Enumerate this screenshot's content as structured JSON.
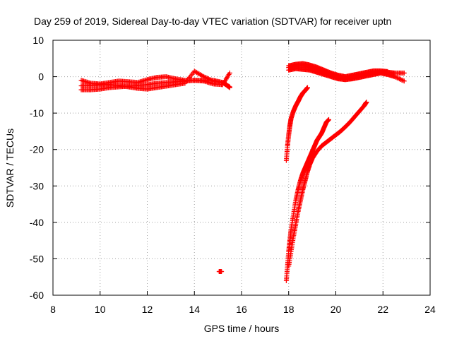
{
  "chart_data": {
    "type": "scatter",
    "title": "Day 259 of 2019, Sidereal Day-to-day VTEC variation (SDTVAR) for receiver uptn",
    "xlabel": "GPS time / hours",
    "ylabel": "SDTVAR / TECUs",
    "xlim": [
      8,
      24
    ],
    "ylim": [
      -60,
      10
    ],
    "xticks": [
      "8",
      "10",
      "12",
      "14",
      "16",
      "18",
      "20",
      "22",
      "24"
    ],
    "yticks": [
      "10",
      "0",
      "-10",
      "-20",
      "-30",
      "-40",
      "-50",
      "-60"
    ],
    "grid": true,
    "legend": "none",
    "marker_color": "#ff0000",
    "series": [
      {
        "x": [
          9.2,
          9.6,
          10.0,
          10.4,
          10.8,
          11.2,
          11.6,
          12.0,
          12.4,
          12.8,
          13.2,
          13.6,
          14.0,
          14.4,
          14.8,
          15.2,
          15.5
        ],
        "y": [
          -1.0,
          -1.8,
          -2.0,
          -1.6,
          -1.2,
          -1.4,
          -1.6,
          -0.8,
          -0.2,
          0.0,
          -0.6,
          -1.0,
          -1.0,
          -1.2,
          -2.0,
          -2.2,
          1.0
        ]
      },
      {
        "x": [
          9.2,
          9.6,
          10.0,
          10.4,
          10.8,
          11.2,
          11.6,
          12.0,
          12.4,
          12.8,
          13.2,
          13.6,
          14.0,
          14.4,
          14.8,
          15.2,
          15.5
        ],
        "y": [
          -2.5,
          -2.4,
          -2.2,
          -2.2,
          -2.4,
          -2.8,
          -3.2,
          -3.4,
          -3.0,
          -2.6,
          -2.2,
          -1.8,
          1.5,
          0.0,
          -1.2,
          -1.6,
          -2.8
        ]
      },
      {
        "x": [
          9.2,
          9.6,
          10.0,
          10.4,
          10.8,
          11.2,
          11.6,
          12.0,
          12.4,
          12.8,
          13.2,
          13.6,
          14.0,
          14.4,
          14.8,
          15.2,
          15.5
        ],
        "y": [
          -3.6,
          -3.6,
          -3.4,
          -3.0,
          -2.8,
          -2.6,
          -2.4,
          -2.2,
          -1.8,
          -1.6,
          -1.4,
          -1.2,
          -1.0,
          -1.0,
          -1.0,
          -1.6,
          -3.0
        ]
      },
      {
        "x": [
          15.05,
          15.15
        ],
        "y": [
          -53.5,
          -53.5
        ]
      },
      {
        "x": [
          17.9,
          17.95,
          18.0,
          18.05,
          18.1,
          18.2,
          18.3,
          18.4,
          18.5,
          18.6,
          18.7,
          18.8
        ],
        "y": [
          -23.0,
          -19.0,
          -16.0,
          -13.5,
          -11.5,
          -9.5,
          -8.0,
          -6.8,
          -5.5,
          -4.5,
          -3.8,
          -3.0
        ]
      },
      {
        "x": [
          17.9,
          17.95,
          18.0,
          18.05,
          18.1,
          18.2,
          18.3,
          18.4,
          18.5,
          18.6,
          18.7,
          18.8,
          18.9,
          19.0,
          19.1,
          19.2,
          19.3,
          19.4,
          19.5,
          19.6,
          19.7
        ],
        "y": [
          -56.0,
          -52.0,
          -48.0,
          -45.0,
          -42.0,
          -38.0,
          -34.0,
          -31.0,
          -28.5,
          -26.5,
          -25.0,
          -23.5,
          -22.0,
          -20.5,
          -19.0,
          -17.5,
          -16.5,
          -15.5,
          -14.0,
          -12.5,
          -11.8
        ]
      },
      {
        "x": [
          18.0,
          18.1,
          18.2,
          18.3,
          18.4,
          18.5,
          18.6,
          18.7,
          18.8,
          18.9,
          19.0,
          19.2,
          19.4,
          19.6,
          19.8,
          20.0,
          20.2,
          20.4,
          20.6,
          20.8,
          21.0,
          21.2,
          21.3
        ],
        "y": [
          -52.0,
          -48.0,
          -44.0,
          -40.5,
          -37.0,
          -34.0,
          -31.0,
          -28.5,
          -26.0,
          -24.0,
          -22.5,
          -20.5,
          -19.0,
          -18.0,
          -17.0,
          -16.0,
          -15.0,
          -13.8,
          -12.5,
          -11.0,
          -9.5,
          -8.0,
          -7.0
        ]
      },
      {
        "x": [
          18.0,
          18.3,
          18.6,
          18.9,
          19.2,
          19.5,
          19.8,
          20.1,
          20.4,
          20.7,
          21.0,
          21.3,
          21.6,
          21.9,
          22.2,
          22.5,
          22.9
        ],
        "y": [
          2.5,
          3.0,
          3.0,
          2.6,
          2.0,
          1.2,
          0.4,
          -0.2,
          -0.4,
          -0.2,
          0.2,
          0.6,
          1.0,
          1.2,
          1.2,
          1.0,
          1.0
        ]
      },
      {
        "x": [
          18.0,
          18.3,
          18.6,
          18.9,
          19.2,
          19.5,
          19.8,
          20.1,
          20.4,
          20.7,
          21.0,
          21.3,
          21.6,
          21.9,
          22.2,
          22.5,
          22.9
        ],
        "y": [
          1.8,
          2.2,
          2.0,
          1.8,
          1.2,
          0.6,
          0.0,
          -0.6,
          -0.8,
          -0.6,
          -0.2,
          0.2,
          0.6,
          1.0,
          0.6,
          0.0,
          -1.2
        ]
      },
      {
        "x": [
          18.0,
          18.3,
          18.6,
          18.9,
          19.2,
          19.5,
          19.8,
          20.1,
          20.4,
          20.7,
          21.0,
          21.3,
          21.6,
          21.9,
          22.2
        ],
        "y": [
          3.0,
          3.4,
          3.6,
          3.2,
          2.6,
          1.8,
          1.0,
          0.4,
          0.0,
          0.4,
          0.8,
          1.2,
          1.6,
          1.6,
          1.4
        ]
      }
    ]
  }
}
